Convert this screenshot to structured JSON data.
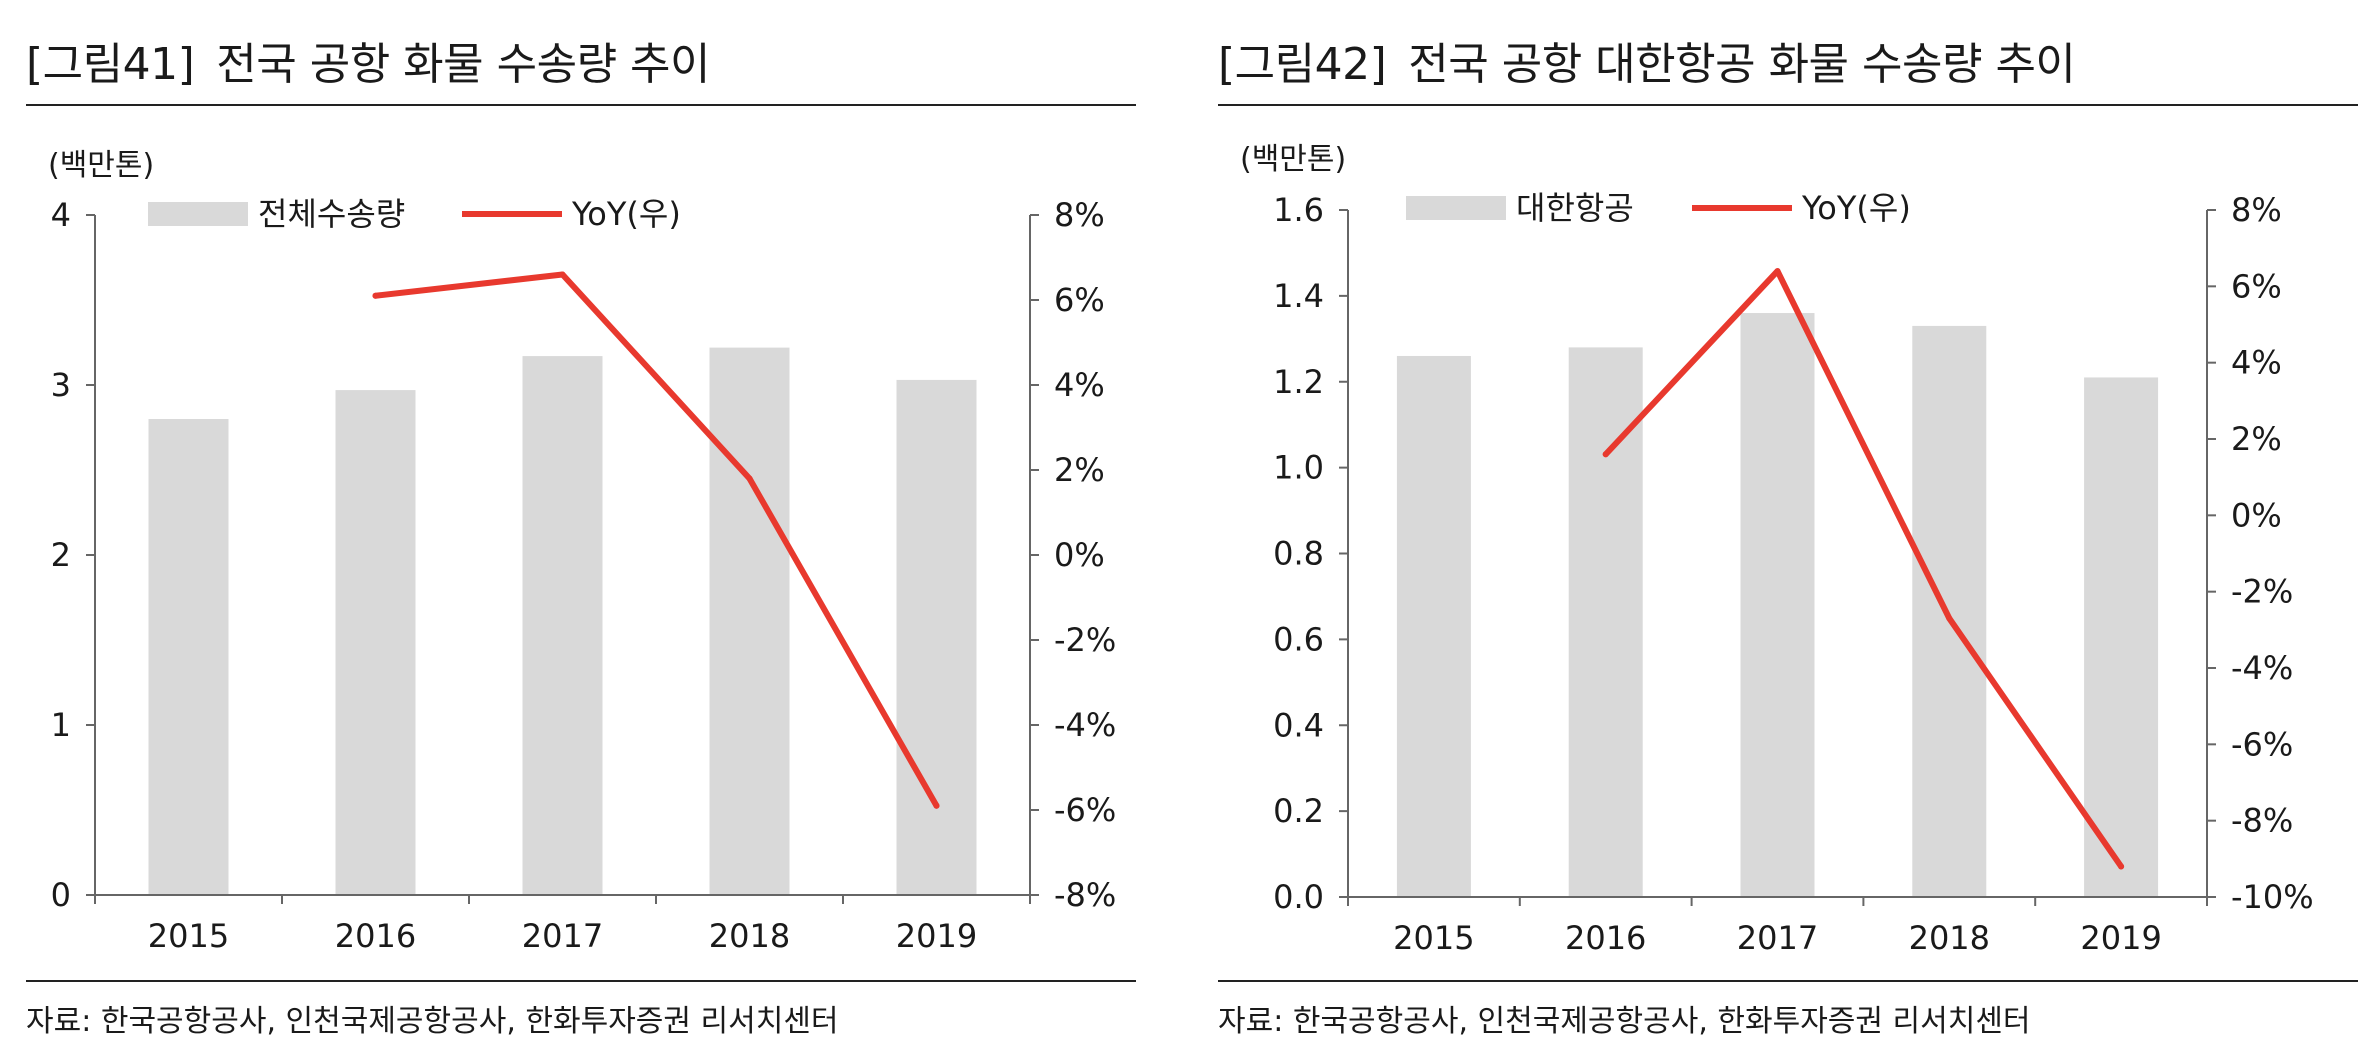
{
  "colors": {
    "bar": "#d9d9d9",
    "line": "#e8392e",
    "axis": "#666666",
    "text": "#1a1a1a"
  },
  "chart_data": [
    {
      "type": "bar+line",
      "figure_number": "[그림41]",
      "title": "전국 공항 화물 수송량 추이",
      "unit_label": "(백만톤)",
      "categories": [
        "2015",
        "2016",
        "2017",
        "2018",
        "2019"
      ],
      "series": [
        {
          "name": "전체수송량",
          "kind": "bar",
          "axis": "left",
          "values": [
            2.8,
            2.97,
            3.17,
            3.22,
            3.03
          ]
        },
        {
          "name": "YoY(우)",
          "kind": "line",
          "axis": "right",
          "values": [
            null,
            6.1,
            6.6,
            1.8,
            -5.9
          ]
        }
      ],
      "left_axis": {
        "min": 0,
        "max": 4,
        "ticks": [
          0,
          1,
          2,
          3,
          4
        ],
        "tick_labels": [
          "0",
          "1",
          "2",
          "3",
          "4"
        ]
      },
      "right_axis": {
        "min": -8,
        "max": 8,
        "ticks": [
          -8,
          -6,
          -4,
          -2,
          0,
          2,
          4,
          6,
          8
        ],
        "tick_labels": [
          "-8%",
          "-6%",
          "-4%",
          "-2%",
          "0%",
          "2%",
          "4%",
          "6%",
          "8%"
        ]
      },
      "legend_position": "top",
      "source": "자료: 한국공항공사, 인천국제공항공사, 한화투자증권 리서치센터"
    },
    {
      "type": "bar+line",
      "figure_number": "[그림42]",
      "title": "전국 공항 대한항공 화물 수송량 추이",
      "unit_label": "(백만톤)",
      "categories": [
        "2015",
        "2016",
        "2017",
        "2018",
        "2019"
      ],
      "series": [
        {
          "name": "대한항공",
          "kind": "bar",
          "axis": "left",
          "values": [
            1.26,
            1.28,
            1.36,
            1.33,
            1.21
          ]
        },
        {
          "name": "YoY(우)",
          "kind": "line",
          "axis": "right",
          "values": [
            null,
            1.6,
            6.4,
            -2.7,
            -9.2
          ]
        }
      ],
      "left_axis": {
        "min": 0,
        "max": 1.6,
        "ticks": [
          0,
          0.2,
          0.4,
          0.6,
          0.8,
          1.0,
          1.2,
          1.4,
          1.6
        ],
        "tick_labels": [
          "0.0",
          "0.2",
          "0.4",
          "0.6",
          "0.8",
          "1.0",
          "1.2",
          "1.4",
          "1.6"
        ]
      },
      "right_axis": {
        "min": -10,
        "max": 8,
        "ticks": [
          -10,
          -8,
          -6,
          -4,
          -2,
          0,
          2,
          4,
          6,
          8
        ],
        "tick_labels": [
          "-10%",
          "-8%",
          "-6%",
          "-4%",
          "-2%",
          "0%",
          "2%",
          "4%",
          "6%",
          "8%"
        ]
      },
      "legend_position": "top",
      "source": "자료: 한국공항공사, 인천국제공항공사, 한화투자증권 리서치센터"
    }
  ]
}
